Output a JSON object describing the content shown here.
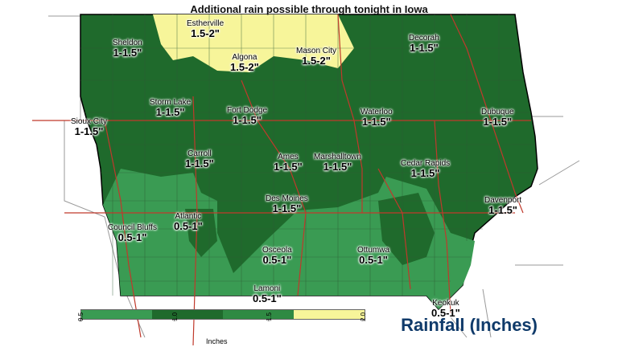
{
  "title": "Additional rain possible through tonight in Iowa",
  "brand": "Rainfall (Inches)",
  "legend": {
    "colors": [
      "#3a9b53",
      "#1f6a2c",
      "#2f8a43",
      "#f7f59a"
    ],
    "ticks": [
      "0.5",
      "1.0",
      "1.5",
      "2.0"
    ],
    "unit": "Inches"
  },
  "cities": [
    {
      "name": "Estherville",
      "value": "1.5-2\""
    },
    {
      "name": "Sheldon",
      "value": "1-1.5\""
    },
    {
      "name": "Algona",
      "value": "1.5-2\""
    },
    {
      "name": "Mason City",
      "value": "1.5-2\""
    },
    {
      "name": "Decorah",
      "value": "1-1.5\""
    },
    {
      "name": "Storm Lake",
      "value": "1-1.5\""
    },
    {
      "name": "Fort Dodge",
      "value": "1-1.5\""
    },
    {
      "name": "Waterloo",
      "value": "1-1.5\""
    },
    {
      "name": "Dubuque",
      "value": "1-1.5\""
    },
    {
      "name": "Sioux City",
      "value": "1-1.5\""
    },
    {
      "name": "Carroll",
      "value": "1-1.5\""
    },
    {
      "name": "Ames",
      "value": "1-1.5\""
    },
    {
      "name": "Marshalltown",
      "value": "1-1.5\""
    },
    {
      "name": "Cedar Rapids",
      "value": "1-1.5\""
    },
    {
      "name": "Des Moines",
      "value": "1-1.5\""
    },
    {
      "name": "Davenport",
      "value": "1-1.5\""
    },
    {
      "name": "Council Bluffs",
      "value": "0.5-1\""
    },
    {
      "name": "Atlantic",
      "value": "0.5-1\""
    },
    {
      "name": "Osceola",
      "value": "0.5-1\""
    },
    {
      "name": "Ottumwa",
      "value": "0.5-1\""
    },
    {
      "name": "Lamoni",
      "value": "0.5-1\""
    },
    {
      "name": "Keokuk",
      "value": "0.5-1\""
    }
  ]
}
